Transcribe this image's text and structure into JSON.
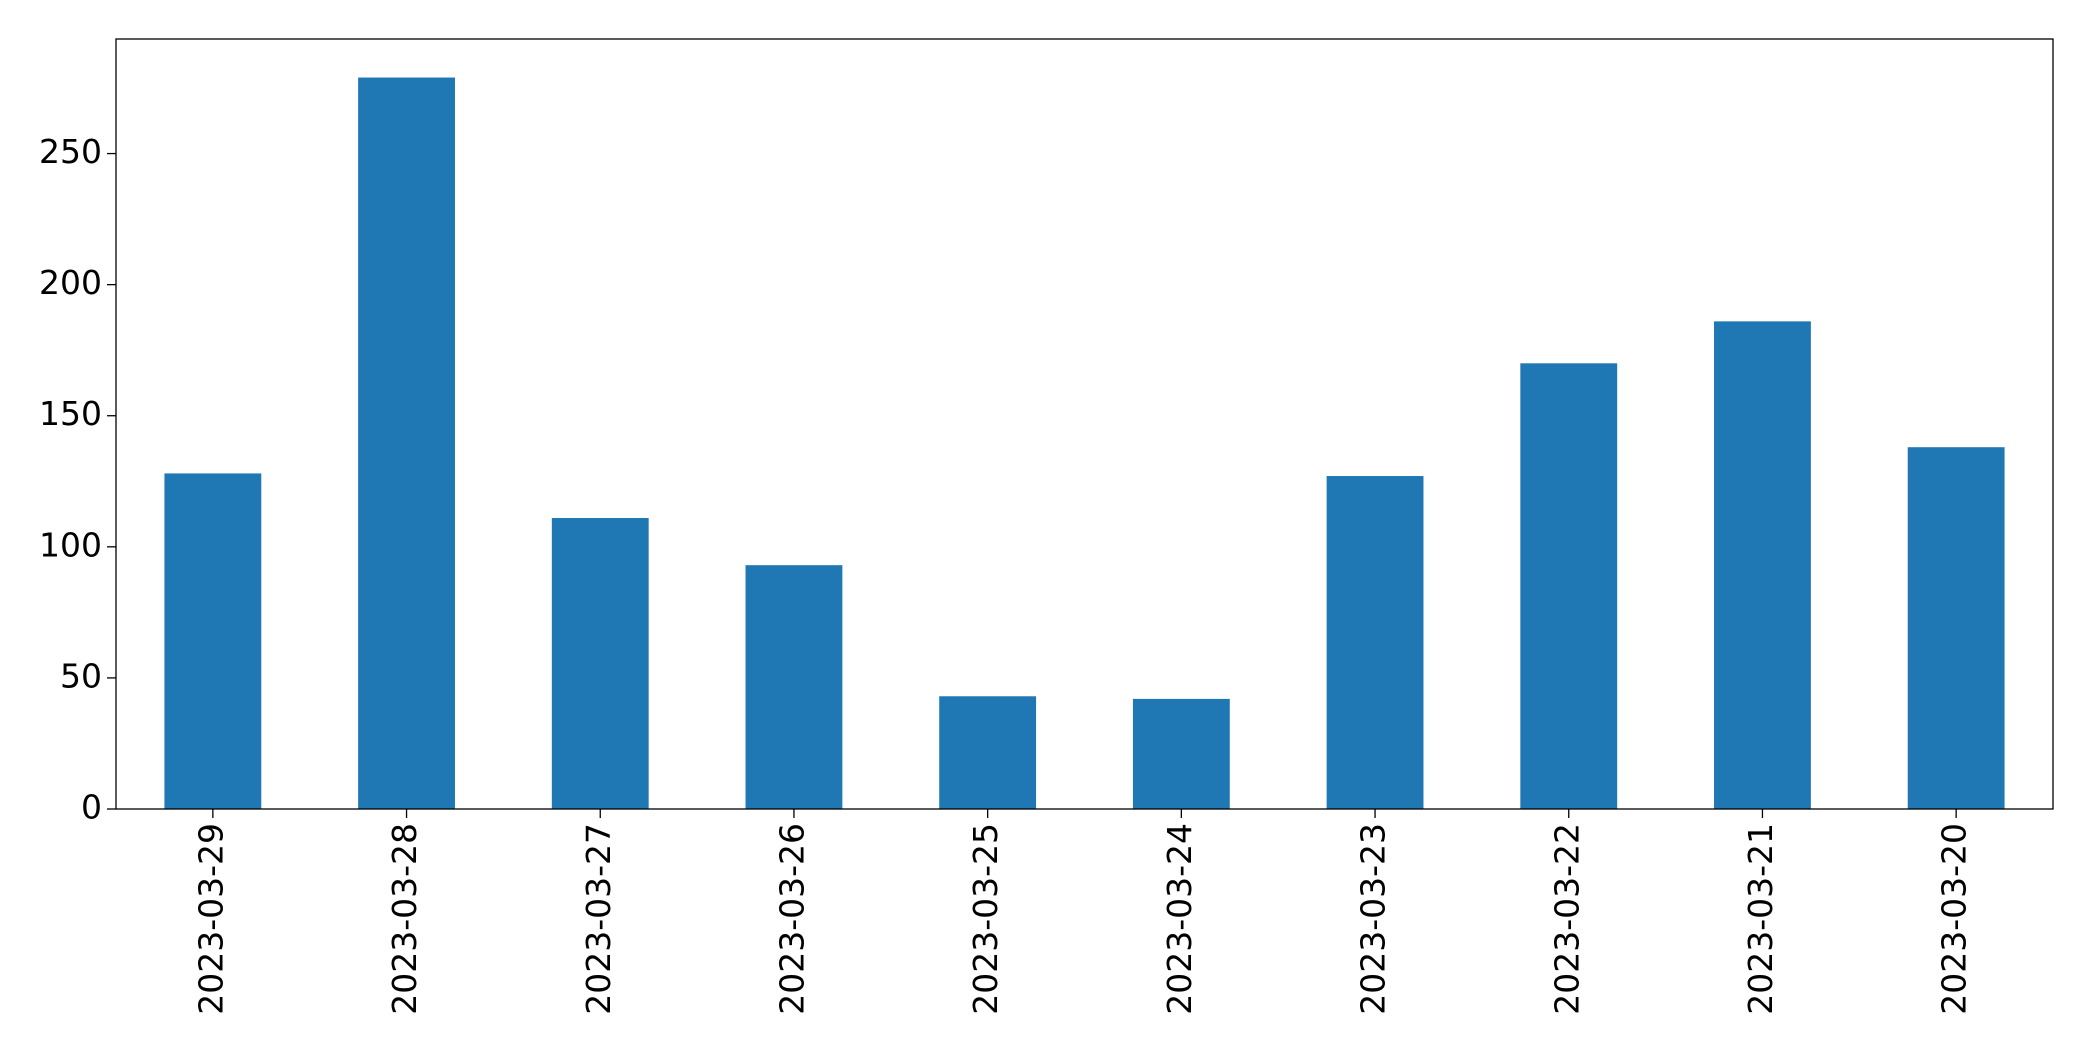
{
  "chart_data": {
    "type": "bar",
    "categories": [
      "2023-03-29",
      "2023-03-28",
      "2023-03-27",
      "2023-03-26",
      "2023-03-25",
      "2023-03-24",
      "2023-03-23",
      "2023-03-22",
      "2023-03-21",
      "2023-03-20"
    ],
    "values": [
      128,
      279,
      111,
      93,
      43,
      42,
      127,
      170,
      186,
      138
    ],
    "color": "#1f77b4",
    "ylim": [
      0,
      293.7
    ],
    "yticks": [
      0,
      50,
      100,
      150,
      200,
      250
    ],
    "grid": false
  }
}
